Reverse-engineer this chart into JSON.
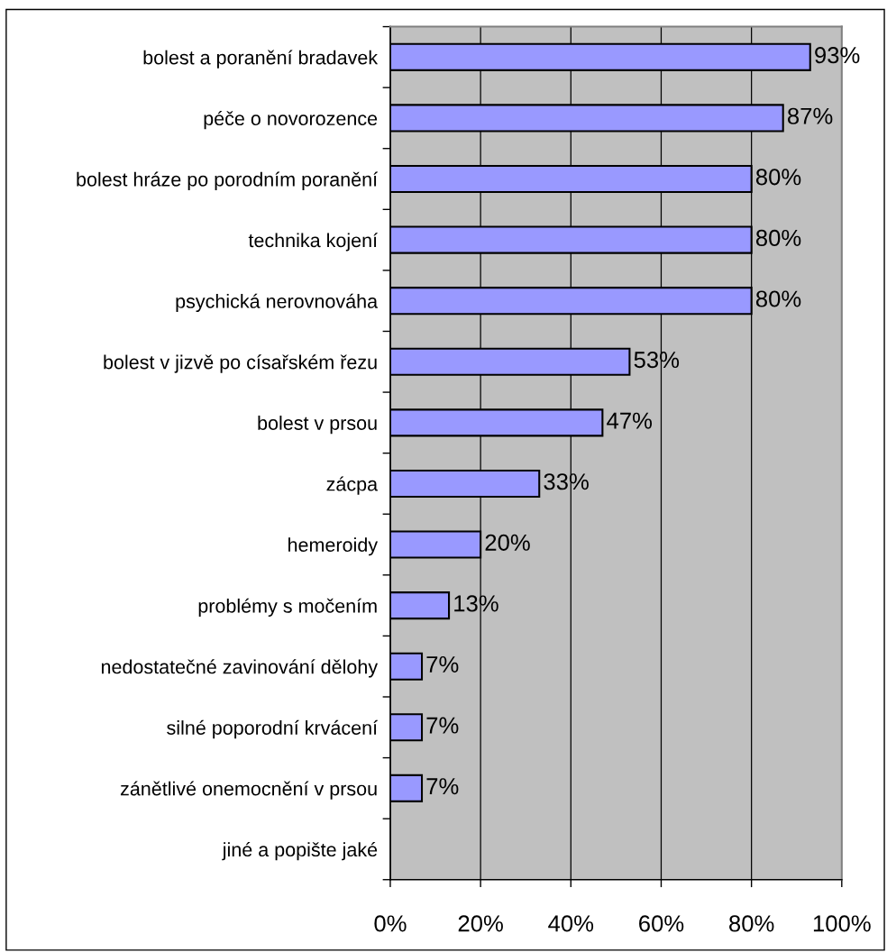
{
  "chart_data": {
    "type": "bar",
    "orientation": "horizontal",
    "categories": [
      "bolest a poranění bradavek",
      "péče o novorozence",
      "bolest hráze po porodním poranění",
      "technika kojení",
      "psychická nerovnováha",
      "bolest v jizvě po císařském řezu",
      "bolest v prsou",
      "zácpa",
      "hemeroidy",
      "problémy s močením",
      "nedostatečné zavinování dělohy",
      "silné poporodní krvácení",
      "zánětlivé onemocnění v prsou",
      "jiné a popište jaké"
    ],
    "values": [
      93,
      87,
      80,
      80,
      80,
      53,
      47,
      33,
      20,
      13,
      7,
      7,
      7,
      null
    ],
    "value_labels": [
      "93%",
      "87%",
      "80%",
      "80%",
      "80%",
      "53%",
      "47%",
      "33%",
      "20%",
      "13%",
      "7%",
      "7%",
      "7%",
      null
    ],
    "color": "#9999ff",
    "xlim": [
      0,
      100
    ],
    "xticks": [
      {
        "value": 0,
        "label": "0%"
      },
      {
        "value": 20,
        "label": "20%"
      },
      {
        "value": 40,
        "label": "40%"
      },
      {
        "value": 60,
        "label": "60%"
      },
      {
        "value": 80,
        "label": "80%"
      },
      {
        "value": 100,
        "label": "100%"
      }
    ],
    "grid": "x",
    "legend": false
  }
}
